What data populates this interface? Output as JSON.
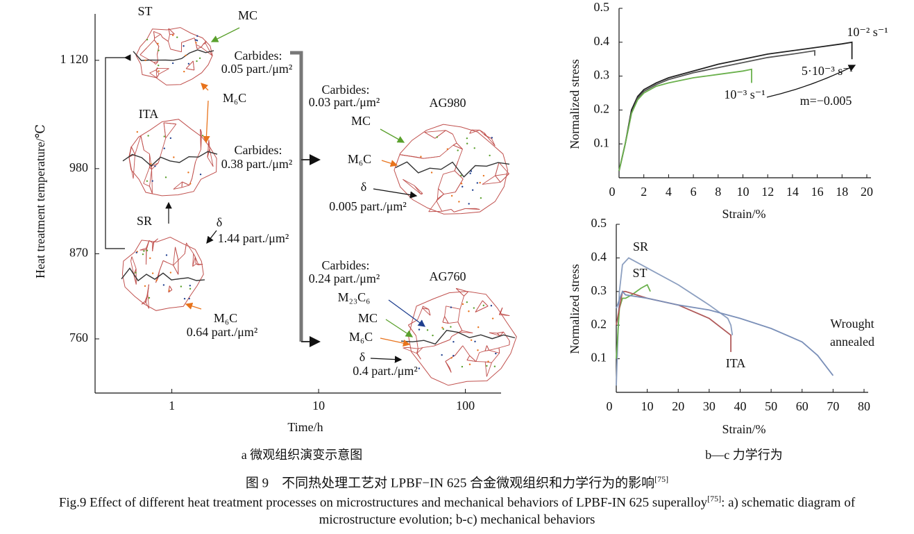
{
  "panel_a": {
    "y_label": "Heat treatment temperature/℃",
    "x_label": "Time/h",
    "caption": "a 微观组织演变示意图",
    "x_log": true,
    "xlim": [
      0.3,
      175
    ],
    "ylim": [
      690,
      1180
    ],
    "xticks": [
      1,
      10,
      100
    ],
    "yticks": [
      {
        "value": 1120,
        "label": "1 120"
      },
      980,
      870,
      760
    ],
    "annotations": [
      {
        "text": "ST",
        "color": "#111111"
      },
      {
        "text": "MC",
        "color": "#5aa02c"
      },
      {
        "text": "Carbides:",
        "color": "#b22222"
      },
      {
        "text": "0.05 part./μm²",
        "color": "#b22222"
      },
      {
        "text": "M₆C",
        "color": "#e8731c"
      },
      {
        "text": "ITA",
        "color": "#111111"
      },
      {
        "text": "Carbides:",
        "color": "#b22222"
      },
      {
        "text": "0.38 part./μm²",
        "color": "#b22222"
      },
      {
        "text": "SR",
        "color": "#111111"
      },
      {
        "text": "δ",
        "color": "#111111"
      },
      {
        "text": "1.44 part./μm²",
        "color": "#b22222"
      },
      {
        "text": "M₆C",
        "color": "#e8731c"
      },
      {
        "text": "0.64 part./μm²",
        "color": "#b22222"
      },
      {
        "text": "Carbides:",
        "color": "#b22222"
      },
      {
        "text": "0.03 part./μm²",
        "color": "#b22222"
      },
      {
        "text": "AG980",
        "color": "#111111"
      },
      {
        "text": "MC",
        "color": "#5aa02c"
      },
      {
        "text": "M₆C",
        "color": "#e8731c"
      },
      {
        "text": "δ",
        "color": "#111111"
      },
      {
        "text": "0.005 part./μm²",
        "color": "#b22222"
      },
      {
        "text": "Carbides:",
        "color": "#b22222"
      },
      {
        "text": "0.24 part./μm²",
        "color": "#b22222"
      },
      {
        "text": "AG760",
        "color": "#111111"
      },
      {
        "text": "M₂₃C₆",
        "color": "#1f3f8f"
      },
      {
        "text": "MC",
        "color": "#5aa02c"
      },
      {
        "text": "M₆C",
        "color": "#e8731c"
      },
      {
        "text": "δ",
        "color": "#111111"
      },
      {
        "text": "0.4 part./μm²",
        "color": "#b22222"
      }
    ]
  },
  "chart_data": [
    {
      "type": "line",
      "y_label": "Normalized stress",
      "x_label": "Strain/%",
      "xlim": [
        0,
        20
      ],
      "ylim": [
        0,
        0.5
      ],
      "xticks": [
        0,
        2,
        4,
        6,
        8,
        10,
        12,
        14,
        16,
        18,
        20
      ],
      "yticks": [
        0.1,
        0.2,
        0.3,
        0.4,
        0.5
      ],
      "annotation": "m=−0.005",
      "series": [
        {
          "name": "10⁻² s⁻¹",
          "color": "#222222",
          "x": [
            0,
            0.5,
            1,
            1.5,
            2,
            3,
            4,
            6,
            8,
            10,
            12,
            14,
            16,
            18,
            18.8,
            18.8
          ],
          "values": [
            0.02,
            0.1,
            0.2,
            0.24,
            0.26,
            0.28,
            0.295,
            0.315,
            0.335,
            0.35,
            0.365,
            0.375,
            0.385,
            0.395,
            0.4,
            0.35
          ]
        },
        {
          "name": "5·10⁻³ s⁻¹",
          "color": "#555555",
          "x": [
            0,
            0.5,
            1,
            1.5,
            2,
            3,
            4,
            6,
            8,
            10,
            12,
            14,
            15.8,
            15.8
          ],
          "values": [
            0.02,
            0.1,
            0.19,
            0.235,
            0.255,
            0.275,
            0.29,
            0.31,
            0.325,
            0.34,
            0.355,
            0.365,
            0.375,
            0.36
          ]
        },
        {
          "name": "10⁻³ s⁻¹",
          "color": "#6ab04c",
          "x": [
            0,
            0.5,
            1,
            1.5,
            2,
            3,
            4,
            6,
            8,
            10,
            10.7,
            10.7
          ],
          "values": [
            0.02,
            0.1,
            0.19,
            0.23,
            0.25,
            0.27,
            0.28,
            0.295,
            0.305,
            0.315,
            0.32,
            0.28
          ]
        }
      ]
    },
    {
      "type": "line",
      "y_label": "Normalized stress",
      "x_label": "Strain/%",
      "xlim": [
        0,
        80
      ],
      "ylim": [
        0,
        0.5
      ],
      "xticks": [
        0,
        10,
        20,
        30,
        40,
        50,
        60,
        70,
        80
      ],
      "yticks": [
        0.1,
        0.2,
        0.3,
        0.4,
        0.5
      ],
      "series": [
        {
          "name": "SR",
          "color": "#8c9fc0",
          "x": [
            0,
            1,
            2,
            4,
            10,
            20,
            30,
            36,
            37,
            37.5
          ],
          "values": [
            0.02,
            0.3,
            0.38,
            0.4,
            0.37,
            0.32,
            0.26,
            0.22,
            0.2,
            0.17
          ]
        },
        {
          "name": "ST",
          "color": "#6ab04c",
          "x": [
            0,
            1,
            2,
            3,
            5,
            8,
            10,
            11
          ],
          "values": [
            0.1,
            0.25,
            0.28,
            0.28,
            0.29,
            0.31,
            0.32,
            0.3
          ]
        },
        {
          "name": "ITA",
          "color": "#b05a5a",
          "x": [
            0,
            2,
            3,
            10,
            20,
            30,
            37,
            37
          ],
          "values": [
            0.2,
            0.3,
            0.3,
            0.28,
            0.26,
            0.22,
            0.17,
            0.12
          ]
        },
        {
          "name": "Wrought annealed",
          "color": "#7a8fb8",
          "x": [
            0,
            2,
            3,
            10,
            20,
            30,
            40,
            50,
            60,
            65,
            70
          ],
          "values": [
            0.25,
            0.3,
            0.29,
            0.28,
            0.26,
            0.245,
            0.22,
            0.19,
            0.15,
            0.11,
            0.05
          ]
        }
      ]
    }
  ],
  "caption_bc": "b—c 力学行为",
  "caption_cn": [
    "图 9　不同热处理工艺对 LPBF−IN 625 合金微观组织和力学行为的影响",
    "[75]"
  ],
  "caption_en": [
    "Fig.9 Effect of different heat treatment processes on microstructures and mechanical behaviors of LPBF-IN 625 superalloy",
    "[75]",
    ": a) schematic diagram of microstructure evolution; b-c) mechanical behaviors"
  ]
}
